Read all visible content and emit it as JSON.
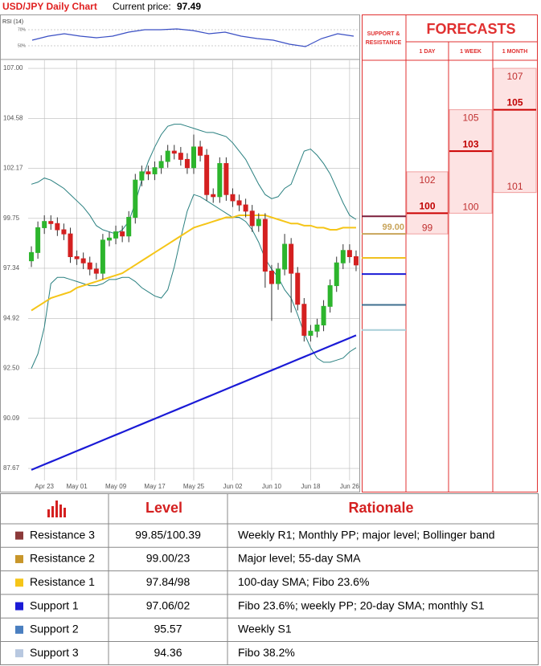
{
  "header": {
    "title": "USD/JPY Daily Chart",
    "price_label": "Current price:",
    "price": 97.49
  },
  "chart_data": [
    {
      "type": "candlestick",
      "categories": [
        null,
        null,
        "Apr 23",
        null,
        null,
        null,
        null,
        "May 01",
        null,
        null,
        null,
        null,
        null,
        "May 09",
        null,
        null,
        null,
        null,
        null,
        "May 17",
        null,
        null,
        null,
        null,
        null,
        "May 25",
        null,
        null,
        null,
        null,
        null,
        "Jun 02",
        null,
        null,
        null,
        null,
        null,
        "Jun 10",
        null,
        null,
        null,
        null,
        null,
        "Jun 18",
        null,
        null,
        null,
        null,
        null,
        "Jun 26",
        null
      ],
      "open": [
        97.7,
        98.1,
        99.3,
        99.6,
        99.5,
        99.2,
        99.0,
        97.9,
        97.8,
        97.6,
        97.3,
        97.1,
        98.7,
        98.8,
        99.1,
        98.9,
        99.8,
        101.6,
        102.0,
        101.9,
        102.2,
        102.5,
        103.0,
        102.9,
        102.6,
        102.2,
        103.2,
        102.8,
        100.9,
        100.8,
        102.4,
        100.9,
        100.6,
        100.4,
        100.1,
        99.4,
        99.7,
        97.2,
        96.6,
        97.3,
        98.5,
        97.1,
        95.6,
        94.1,
        94.3,
        94.6,
        95.5,
        96.5,
        97.6,
        98.2,
        97.9
      ],
      "high": [
        98.4,
        99.6,
        99.9,
        99.9,
        99.8,
        99.5,
        99.3,
        98.2,
        98.1,
        97.9,
        97.6,
        99.0,
        99.1,
        99.4,
        99.4,
        100.1,
        101.9,
        102.3,
        102.3,
        102.5,
        102.8,
        103.3,
        103.3,
        103.2,
        102.9,
        103.8,
        103.5,
        103.1,
        101.2,
        102.7,
        102.7,
        101.2,
        100.9,
        100.7,
        100.4,
        100.0,
        100.0,
        97.5,
        97.6,
        99.0,
        98.8,
        97.4,
        95.9,
        94.6,
        94.9,
        95.8,
        96.8,
        97.9,
        98.5,
        98.5,
        98.2
      ],
      "low": [
        97.4,
        97.8,
        99.0,
        99.2,
        98.9,
        98.7,
        97.6,
        97.5,
        97.3,
        97.0,
        96.8,
        96.8,
        98.4,
        98.5,
        98.6,
        98.6,
        99.5,
        101.3,
        101.6,
        101.6,
        101.9,
        102.2,
        102.6,
        102.3,
        101.9,
        101.9,
        102.5,
        100.6,
        100.5,
        100.5,
        100.6,
        100.3,
        100.1,
        99.8,
        99.1,
        99.1,
        96.4,
        94.8,
        96.3,
        97.0,
        95.2,
        95.3,
        93.8,
        93.8,
        94.0,
        94.3,
        95.2,
        96.2,
        97.3,
        97.6,
        97.2
      ],
      "close": [
        98.1,
        99.3,
        99.6,
        99.5,
        99.2,
        99.0,
        97.9,
        97.8,
        97.6,
        97.3,
        97.1,
        98.7,
        98.8,
        99.1,
        98.9,
        99.8,
        101.6,
        102.0,
        101.9,
        102.2,
        102.5,
        103.0,
        102.9,
        102.6,
        102.2,
        103.2,
        102.8,
        100.9,
        100.8,
        102.4,
        100.9,
        100.6,
        100.4,
        100.1,
        99.4,
        99.7,
        97.2,
        96.6,
        97.3,
        98.5,
        97.1,
        95.6,
        94.1,
        94.3,
        94.6,
        95.5,
        96.5,
        97.6,
        98.2,
        97.9,
        97.5
      ],
      "up_color": "#2db52d",
      "down_color": "#d42020",
      "series": [
        {
          "color": "#2a8080",
          "values": [
            101.4,
            101.5,
            101.7,
            101.6,
            101.4,
            101.2,
            100.9,
            100.6,
            100.3,
            99.9,
            99.4,
            99.2,
            99.1,
            99.0,
            99.2,
            99.6,
            100.5,
            101.6,
            102.5,
            103.2,
            103.8,
            104.2,
            104.3,
            104.3,
            104.2,
            104.1,
            104.0,
            103.9,
            103.9,
            103.8,
            103.7,
            103.4,
            103.0,
            102.6,
            102.0,
            101.4,
            100.9,
            100.7,
            100.8,
            101.2,
            101.4,
            102.2,
            103.0,
            103.1,
            102.8,
            102.4,
            101.9,
            101.2,
            100.5,
            99.9,
            99.7
          ]
        },
        {
          "color": "#2a8080",
          "values": [
            92.5,
            93.2,
            94.5,
            96.6,
            96.9,
            96.9,
            96.8,
            96.7,
            96.6,
            96.5,
            96.5,
            96.6,
            96.8,
            96.8,
            96.9,
            96.9,
            96.7,
            96.4,
            96.2,
            96.0,
            95.9,
            96.3,
            97.4,
            98.8,
            100.1,
            100.9,
            100.8,
            100.6,
            100.4,
            100.2,
            100.0,
            99.8,
            99.8,
            99.6,
            99.2,
            98.6,
            97.8,
            97.3,
            96.9,
            96.3,
            95.9,
            95.1,
            94.2,
            93.5,
            93.0,
            92.8,
            92.8,
            92.9,
            93.0,
            93.3,
            93.5
          ]
        },
        {
          "color": "#f5c518",
          "values": [
            95.3,
            95.5,
            95.7,
            95.9,
            96.0,
            96.1,
            96.2,
            96.4,
            96.5,
            96.6,
            96.7,
            96.8,
            96.9,
            97.0,
            97.1,
            97.3,
            97.5,
            97.7,
            97.9,
            98.1,
            98.3,
            98.5,
            98.7,
            98.9,
            99.1,
            99.3,
            99.4,
            99.5,
            99.6,
            99.7,
            99.8,
            99.8,
            99.9,
            99.9,
            99.9,
            99.9,
            99.9,
            99.8,
            99.7,
            99.6,
            99.5,
            99.5,
            99.4,
            99.4,
            99.3,
            99.3,
            99.2,
            99.2,
            99.3,
            99.3,
            99.3
          ]
        },
        {
          "color": "#1a1ad6",
          "values": [
            87.6,
            87.73,
            87.86,
            87.99,
            88.12,
            88.25,
            88.38,
            88.51,
            88.64,
            88.77,
            88.9,
            89.03,
            89.16,
            89.29,
            89.42,
            89.55,
            89.68,
            89.81,
            89.94,
            90.07,
            90.2,
            90.33,
            90.46,
            90.59,
            90.72,
            90.85,
            90.98,
            91.11,
            91.24,
            91.37,
            91.5,
            91.63,
            91.76,
            91.89,
            92.02,
            92.15,
            92.28,
            92.41,
            92.54,
            92.67,
            92.8,
            92.93,
            93.06,
            93.19,
            93.32,
            93.45,
            93.58,
            93.71,
            93.84,
            93.97,
            94.1
          ]
        }
      ],
      "ylim": [
        87.09,
        107.39
      ],
      "yticks": [
        {
          "value": 107,
          "label": "107.00"
        },
        104.58,
        102.17,
        99.75,
        97.34,
        94.92,
        {
          "value": 92.5,
          "label": "92.50"
        },
        90.09,
        87.67
      ],
      "grid": true
    },
    {
      "type": "line",
      "title": "RSI (14)",
      "color": "#3a4fc4",
      "values": [
        57,
        62,
        65,
        62,
        60,
        62,
        67,
        70,
        70,
        71,
        69,
        65,
        67,
        62,
        59,
        57,
        52,
        49,
        59,
        65,
        62
      ],
      "ylim": [
        39,
        77
      ],
      "yticks": [
        {
          "value": 70,
          "label": "70%"
        },
        {
          "value": 50,
          "label": "50%"
        }
      ]
    }
  ],
  "levels": {
    "heading": [
      "SUPPORT &",
      "RESISTANCE"
    ],
    "items": [
      {
        "value": 99.85,
        "color": "#7b1f3a"
      },
      {
        "value": 99,
        "label": "99.00",
        "color": "#c8a45a"
      },
      {
        "value": 97.84,
        "color": "#f0c020"
      },
      {
        "value": 97.06,
        "color": "#1a1ad6"
      },
      {
        "value": 95.57,
        "color": "#3f6f8f"
      },
      {
        "value": 94.36,
        "color": "#a8cfd8"
      }
    ]
  },
  "forecasts": {
    "title": "FORECASTS",
    "columns": [
      {
        "label": "1 DAY",
        "high": 102,
        "target": 100,
        "low": 99
      },
      {
        "label": "1 WEEK",
        "high": 105,
        "target": 103,
        "low": 100
      },
      {
        "label": "1 MONTH",
        "high": 107,
        "target": 105,
        "low": 101
      }
    ]
  },
  "table": {
    "header": [
      "Level",
      "Rationale"
    ],
    "rows": [
      [
        "Resistance 3",
        "99.85/100.39",
        "Weekly R1; Monthly PP; major level; Bollinger band"
      ],
      [
        "Resistance 2",
        "99.00/23",
        "Major level; 55-day SMA"
      ],
      [
        "Resistance 1",
        "97.84/98",
        "100-day SMA; Fibo 23.6%"
      ],
      [
        "Support 1",
        "97.06/02",
        "Fibo 23.6%; weekly PP; 20-day SMA; monthly S1"
      ],
      [
        "Support 2",
        "95.57",
        "Weekly S1"
      ],
      [
        "Support 3",
        "94.36",
        "Fibo 38.2%"
      ]
    ],
    "colors": [
      "#8b3a3a",
      "#c8962a",
      "#f5c518",
      "#1a1ad6",
      "#4a7fc0",
      "#b8c8e0"
    ]
  }
}
